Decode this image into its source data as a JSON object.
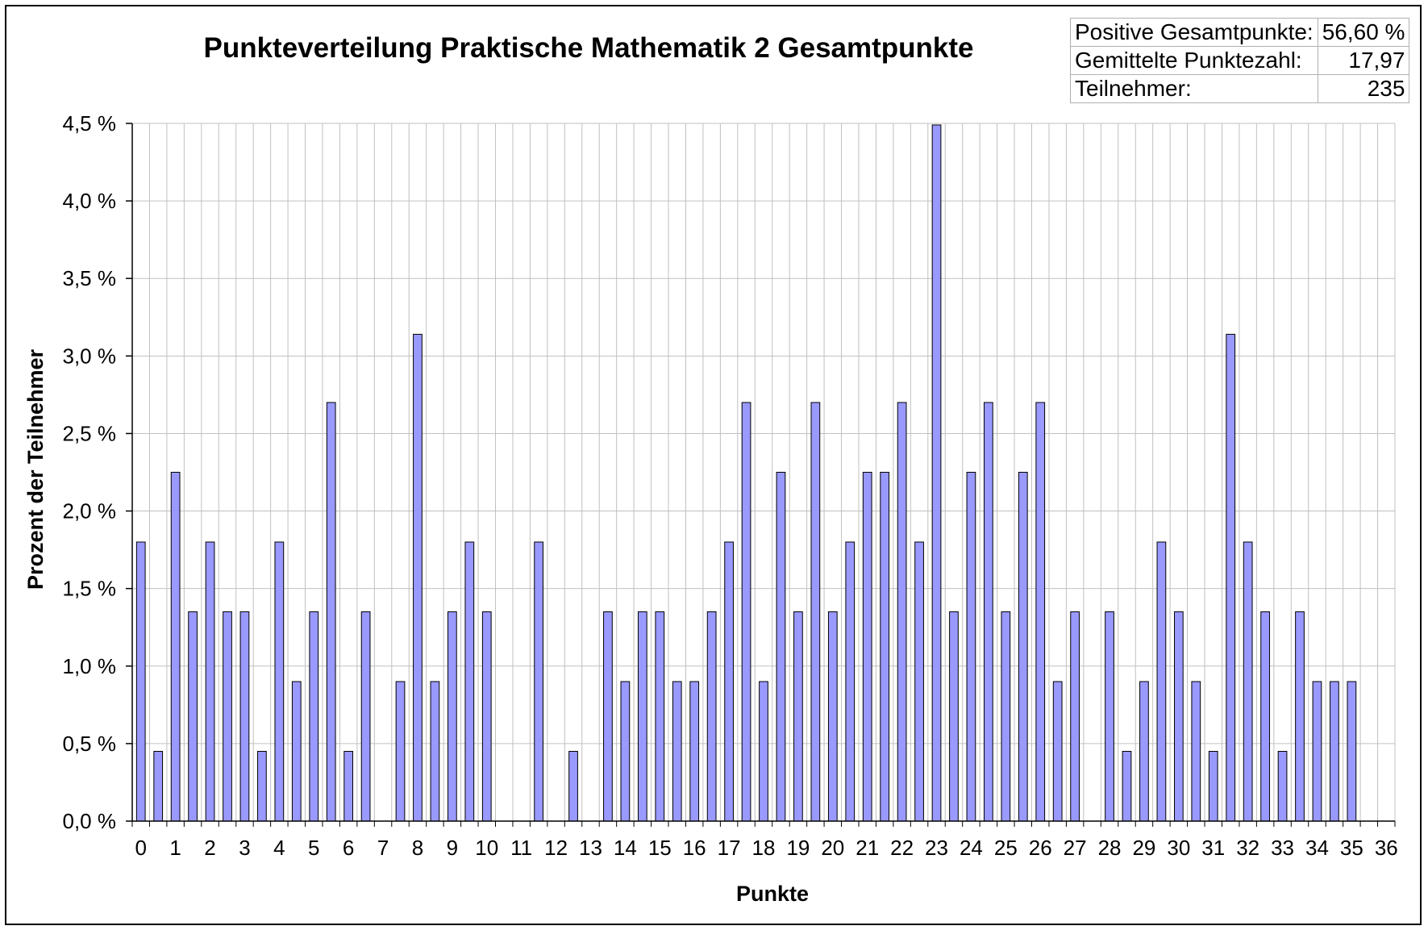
{
  "chart_data": {
    "type": "bar",
    "title": "Punkteverteilung Praktische Mathematik 2 Gesamtpunkte",
    "xlabel": "Punkte",
    "ylabel": "Prozent der Teilnehmer",
    "ylim": [
      0,
      4.5
    ],
    "yticks": [
      "0,0 %",
      "0,5 %",
      "1,0 %",
      "1,5 %",
      "2,0 %",
      "2,5 %",
      "3,0 %",
      "3,5 %",
      "4,0 %",
      "4,5 %"
    ],
    "xtick_labels": [
      "0",
      "1",
      "2",
      "3",
      "4",
      "5",
      "6",
      "7",
      "8",
      "9",
      "10",
      "11",
      "12",
      "13",
      "14",
      "15",
      "16",
      "17",
      "18",
      "19",
      "20",
      "21",
      "22",
      "23",
      "24",
      "25",
      "26",
      "27",
      "28",
      "29",
      "30",
      "31",
      "32",
      "33",
      "34",
      "35",
      "36"
    ],
    "grid": true,
    "bar_color": "#9999ff",
    "x": [
      0,
      0.5,
      1,
      1.5,
      2,
      2.5,
      3,
      3.5,
      4,
      4.5,
      5,
      5.5,
      6,
      6.5,
      7,
      7.5,
      8,
      8.5,
      9,
      9.5,
      10,
      10.5,
      11,
      11.5,
      12,
      12.5,
      13,
      13.5,
      14,
      14.5,
      15,
      15.5,
      16,
      16.5,
      17,
      17.5,
      18,
      18.5,
      19,
      19.5,
      20,
      20.5,
      21,
      21.5,
      22,
      22.5,
      23,
      23.5,
      24,
      24.5,
      25,
      25.5,
      26,
      26.5,
      27,
      27.5,
      28,
      28.5,
      29,
      29.5,
      30,
      30.5,
      31,
      31.5,
      32,
      32.5,
      33,
      33.5,
      34,
      34.5,
      35,
      35.5,
      36
    ],
    "values": [
      1.8,
      0.45,
      2.25,
      1.35,
      1.8,
      1.35,
      1.35,
      0.45,
      1.8,
      0.9,
      1.35,
      2.7,
      0.45,
      1.35,
      0,
      0.9,
      3.14,
      0.9,
      1.35,
      1.8,
      1.35,
      0,
      0,
      1.8,
      0,
      0.45,
      0,
      1.35,
      0.9,
      1.35,
      1.35,
      0.9,
      0.9,
      1.35,
      1.8,
      2.7,
      0.9,
      2.25,
      1.35,
      2.7,
      1.35,
      1.8,
      2.25,
      2.25,
      2.7,
      1.8,
      4.49,
      1.35,
      2.25,
      2.7,
      1.35,
      2.25,
      2.7,
      0.9,
      1.35,
      0,
      1.35,
      0.45,
      0.9,
      1.8,
      1.35,
      0.9,
      0.45,
      3.14,
      1.8,
      1.35,
      0.45,
      1.35,
      0.9,
      0.9,
      0.9,
      0,
      0
    ]
  },
  "stats": [
    {
      "label": "Positive Gesamtpunkte:",
      "value": "56,60 %"
    },
    {
      "label": "Gemittelte Punktezahl:",
      "value": "17,97"
    },
    {
      "label": "Teilnehmer:",
      "value": "235"
    }
  ]
}
